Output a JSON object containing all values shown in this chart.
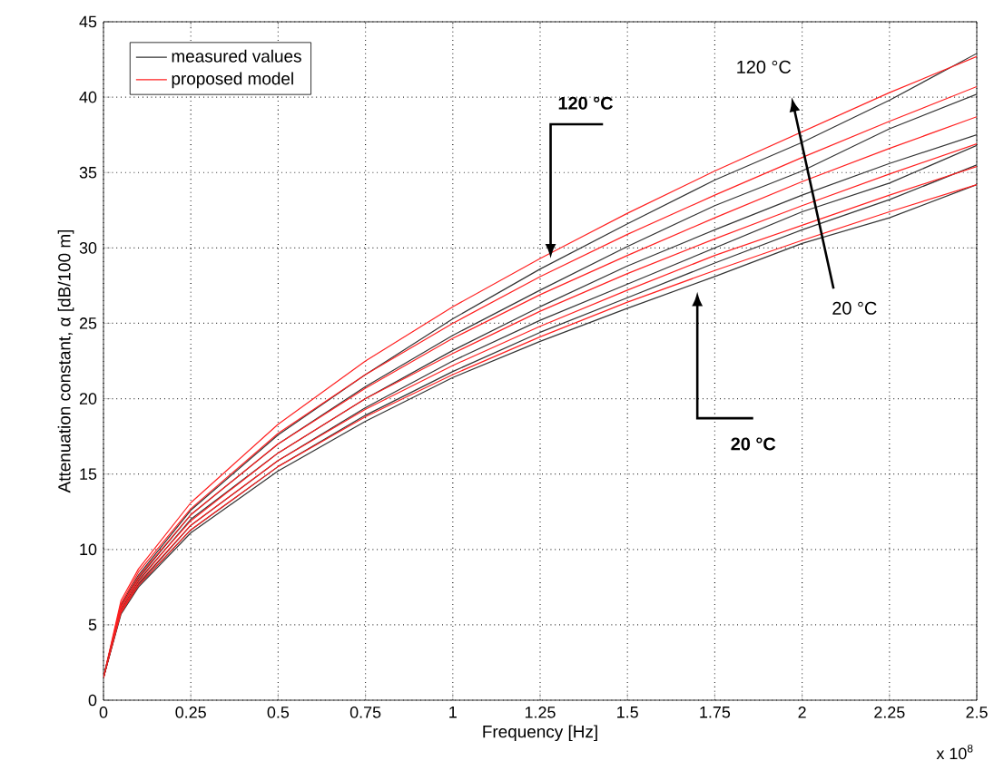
{
  "chart_data": {
    "type": "line",
    "xlabel": "Frequency [Hz]",
    "ylabel": "Attenuation constant, α [dB/100 m]",
    "xlim": [
      0,
      2.5
    ],
    "ylim": [
      0,
      45
    ],
    "xticks": [
      0,
      0.25,
      0.5,
      0.75,
      1,
      1.25,
      1.5,
      1.75,
      2,
      2.25,
      2.5
    ],
    "yticks": [
      0,
      5,
      10,
      15,
      20,
      25,
      30,
      35,
      40,
      45
    ],
    "grid": true,
    "legend": "top left",
    "marker": "none",
    "line_style": "solid",
    "x": [
      0,
      0.05,
      0.1,
      0.25,
      0.5,
      0.75,
      1,
      1.25,
      1.5,
      1.75,
      2,
      2.25,
      2.5
    ],
    "series": [
      {
        "name": "measured values",
        "color": "#333333",
        "values": [
          1.5,
          6.3,
          8.3,
          12.6,
          17.6,
          21.6,
          25.3,
          28.6,
          31.6,
          34.5,
          37.0,
          39.8,
          42.9
        ]
      },
      {
        "name": "proposed model",
        "color": "#ff2020",
        "values": [
          1.5,
          6.6,
          8.7,
          13.1,
          18.3,
          22.5,
          26.1,
          29.3,
          32.3,
          35.1,
          37.7,
          40.3,
          42.7
        ]
      },
      {
        "color": "#333333",
        "values": [
          1.5,
          6.2,
          8.1,
          12.3,
          17.0,
          20.8,
          24.2,
          27.2,
          30.1,
          32.8,
          35.1,
          37.9,
          40.2
        ]
      },
      {
        "color": "#ff2020",
        "values": [
          1.5,
          6.4,
          8.5,
          12.7,
          17.7,
          21.6,
          25.0,
          28.1,
          30.9,
          33.5,
          36.0,
          38.4,
          40.7
        ]
      },
      {
        "color": "#333333",
        "values": [
          1.5,
          6.0,
          7.9,
          12.0,
          16.4,
          20.0,
          23.2,
          26.1,
          28.8,
          31.2,
          33.5,
          35.6,
          37.5
        ]
      },
      {
        "color": "#ff2020",
        "values": [
          1.5,
          6.2,
          8.2,
          12.3,
          17.0,
          20.7,
          24.0,
          26.9,
          29.5,
          32.0,
          34.4,
          36.6,
          38.7
        ]
      },
      {
        "color": "#333333",
        "values": [
          1.5,
          5.9,
          7.7,
          11.6,
          15.9,
          19.4,
          22.5,
          25.2,
          27.6,
          30.0,
          32.4,
          34.3,
          36.8
        ]
      },
      {
        "color": "#ff2020",
        "values": [
          1.5,
          6.1,
          8.0,
          11.9,
          16.4,
          20.0,
          23.0,
          25.8,
          28.3,
          30.6,
          32.8,
          34.9,
          36.9
        ]
      },
      {
        "color": "#333333",
        "values": [
          1.5,
          5.8,
          7.6,
          11.3,
          15.5,
          18.9,
          21.8,
          24.4,
          26.7,
          29.0,
          31.2,
          33.2,
          35.5
        ]
      },
      {
        "color": "#ff2020",
        "values": [
          1.5,
          5.9,
          7.8,
          11.6,
          15.9,
          19.3,
          22.2,
          24.8,
          27.2,
          29.5,
          31.5,
          33.5,
          35.4
        ]
      },
      {
        "color": "#333333",
        "values": [
          1.5,
          5.7,
          7.5,
          11.1,
          15.2,
          18.5,
          21.4,
          23.8,
          26.0,
          28.1,
          30.3,
          32.0,
          34.2
        ]
      },
      {
        "color": "#ff2020",
        "values": [
          1.5,
          5.8,
          7.6,
          11.3,
          15.5,
          18.8,
          21.6,
          24.1,
          26.4,
          28.5,
          30.5,
          32.4,
          34.2
        ]
      }
    ],
    "annotations": [
      {
        "text": "120 °C",
        "x": 1.28,
        "y": 29.3
      },
      {
        "text": "20 °C",
        "x": 1.7,
        "y": 27.1
      },
      "120 °C",
      "20 °C",
      "x 10$^{8}$"
    ]
  }
}
